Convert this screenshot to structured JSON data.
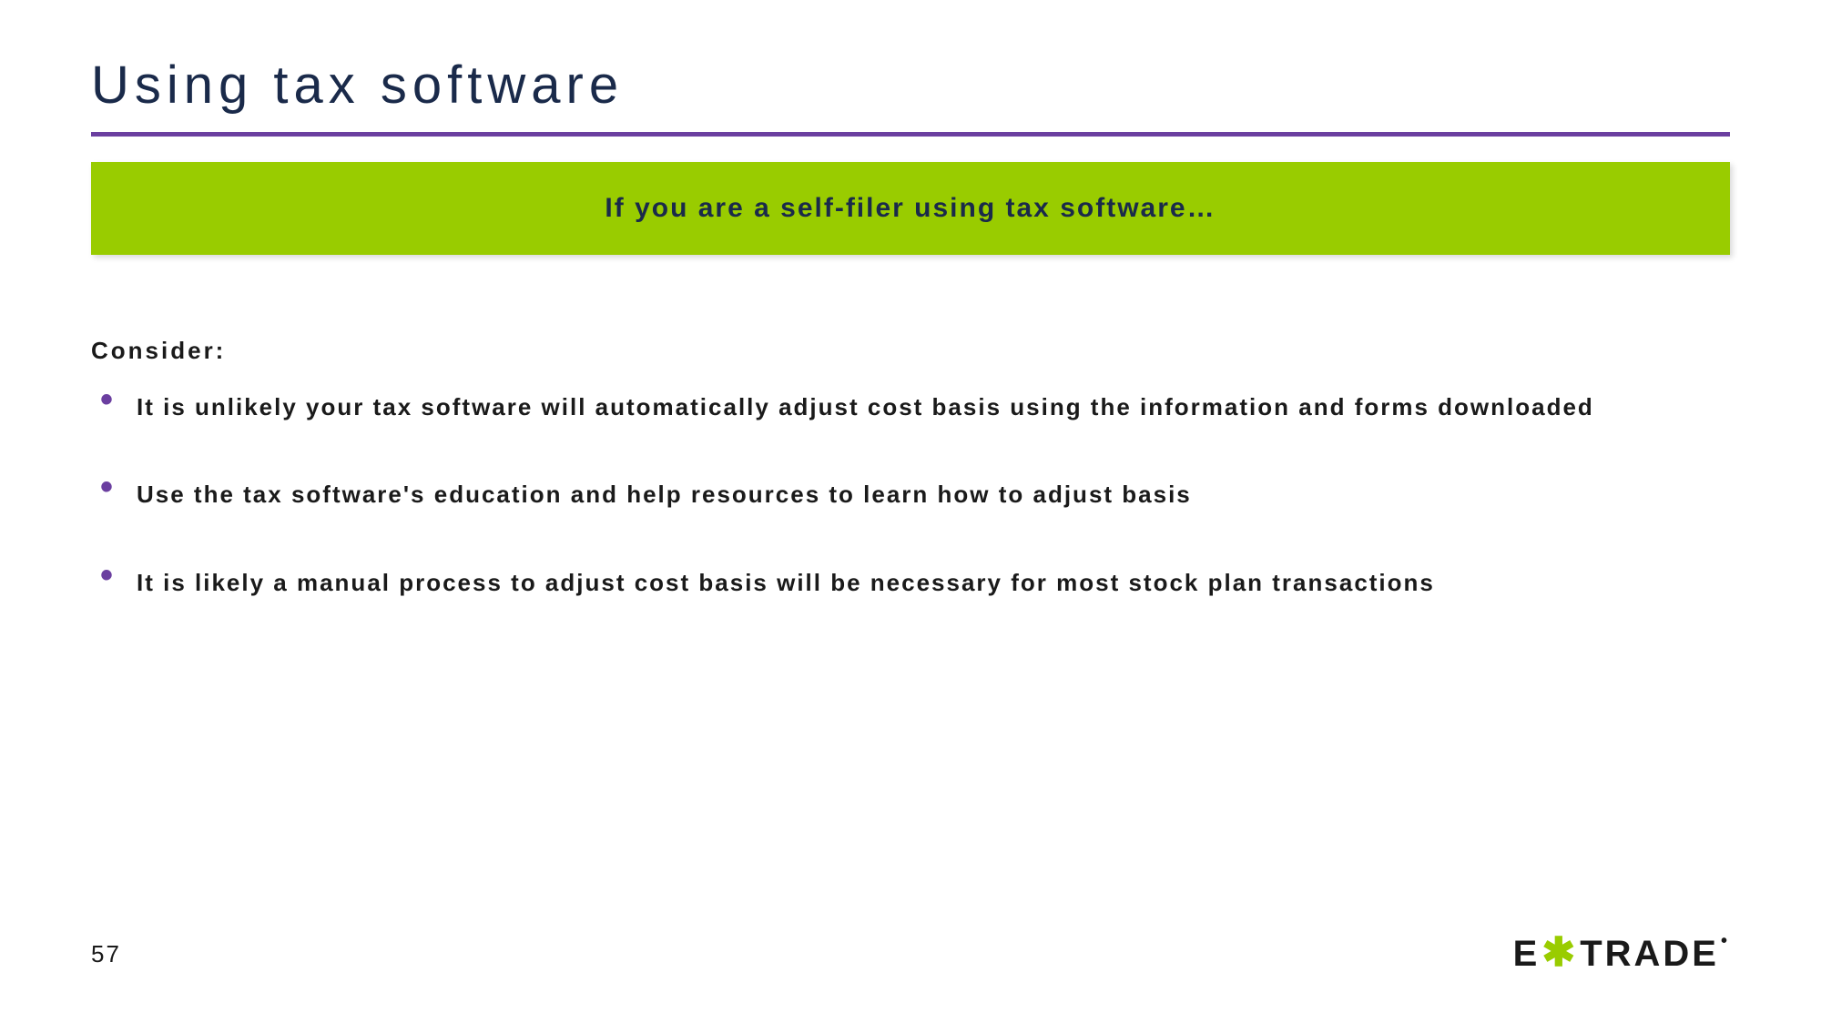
{
  "title": "Using tax software",
  "banner": "If you are a self-filer using tax software…",
  "consider_label": "Consider:",
  "bullets": [
    "It is unlikely your tax software will automatically adjust cost basis using the information and forms downloaded",
    "Use the tax software's education and help resources to learn how to adjust basis",
    "It is likely a manual process to adjust cost basis will be necessary for most stock plan transactions"
  ],
  "page_number": "57",
  "logo": {
    "left": "E",
    "star": "✱",
    "right": "TRADE",
    "dot": "•"
  },
  "colors": {
    "accent_purple": "#6b3fa0",
    "accent_green": "#99cc00",
    "title_color": "#1a2a4a",
    "text_color": "#1a1a1a",
    "background": "#ffffff"
  }
}
